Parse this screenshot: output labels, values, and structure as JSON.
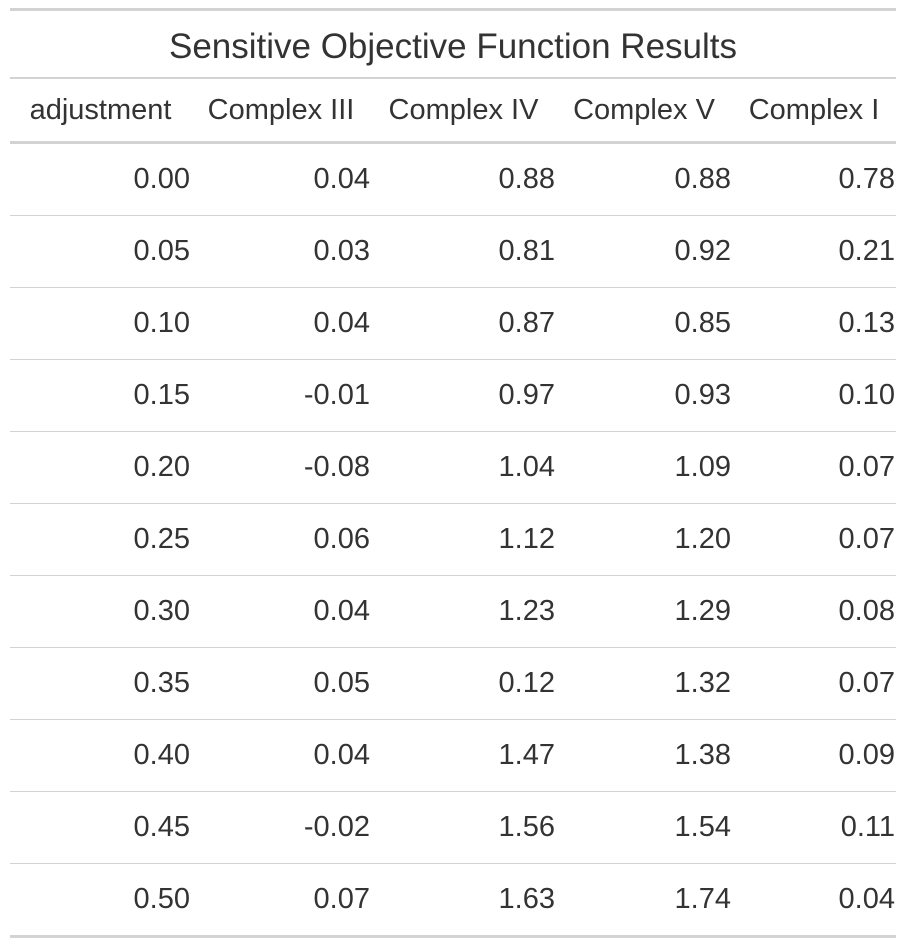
{
  "table": {
    "title": "Sensitive Objective Function Results",
    "columns": [
      "adjustment",
      "Complex III",
      "Complex IV",
      "Complex V",
      "Complex I"
    ],
    "rows": [
      [
        "0.00",
        "0.04",
        "0.88",
        "0.88",
        "0.78"
      ],
      [
        "0.05",
        "0.03",
        "0.81",
        "0.92",
        "0.21"
      ],
      [
        "0.10",
        "0.04",
        "0.87",
        "0.85",
        "0.13"
      ],
      [
        "0.15",
        "-0.01",
        "0.97",
        "0.93",
        "0.10"
      ],
      [
        "0.20",
        "-0.08",
        "1.04",
        "1.09",
        "0.07"
      ],
      [
        "0.25",
        "0.06",
        "1.12",
        "1.20",
        "0.07"
      ],
      [
        "0.30",
        "0.04",
        "1.23",
        "1.29",
        "0.08"
      ],
      [
        "0.35",
        "0.05",
        "0.12",
        "1.32",
        "0.07"
      ],
      [
        "0.40",
        "0.04",
        "1.47",
        "1.38",
        "0.09"
      ],
      [
        "0.45",
        "-0.02",
        "1.56",
        "1.54",
        "0.11"
      ],
      [
        "0.50",
        "0.07",
        "1.63",
        "1.74",
        "0.04"
      ]
    ]
  }
}
